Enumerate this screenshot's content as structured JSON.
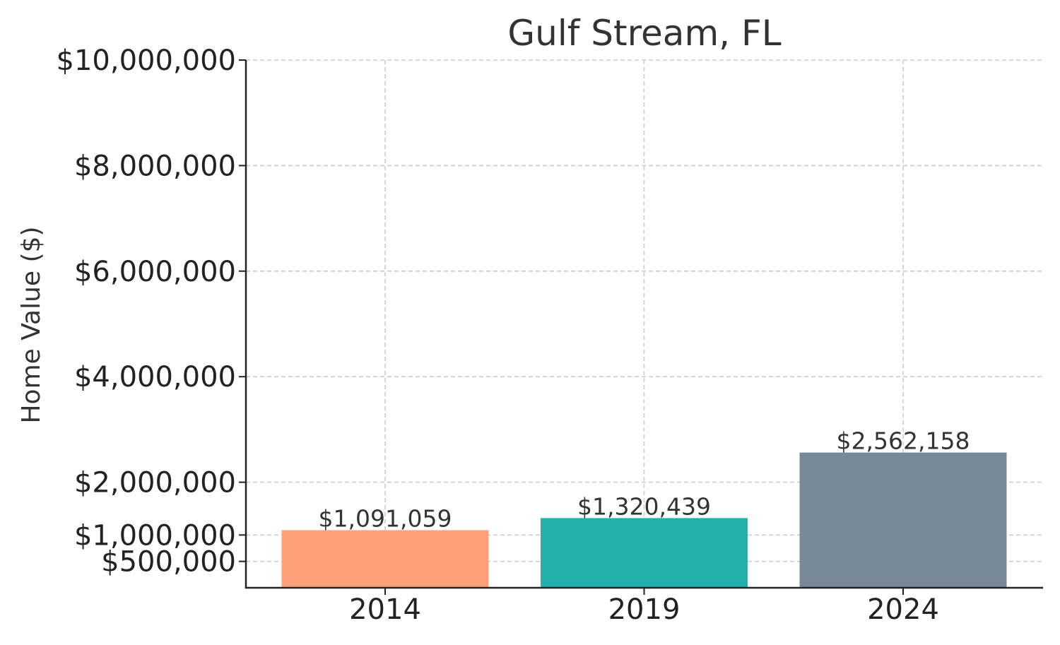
{
  "chart_data": {
    "type": "bar",
    "title": "Gulf Stream, FL",
    "xlabel": "",
    "ylabel": "Home Value ($)",
    "categories": [
      "2014",
      "2019",
      "2024"
    ],
    "values": [
      1091059,
      1320439,
      2562158
    ],
    "value_labels": [
      "$1,091,059",
      "$1,320,439",
      "$2,562,158"
    ],
    "bar_colors": [
      "#FFA07A",
      "#20B2AA",
      "#778899"
    ],
    "ylim": [
      0,
      10000000
    ],
    "yticks": [
      500000,
      1000000,
      2000000,
      4000000,
      6000000,
      8000000,
      10000000
    ],
    "ytick_labels": [
      "$500,000",
      "$1,000,000",
      "$2,000,000",
      "$4,000,000",
      "$6,000,000",
      "$8,000,000",
      "$10,000,000"
    ],
    "grid": true
  }
}
